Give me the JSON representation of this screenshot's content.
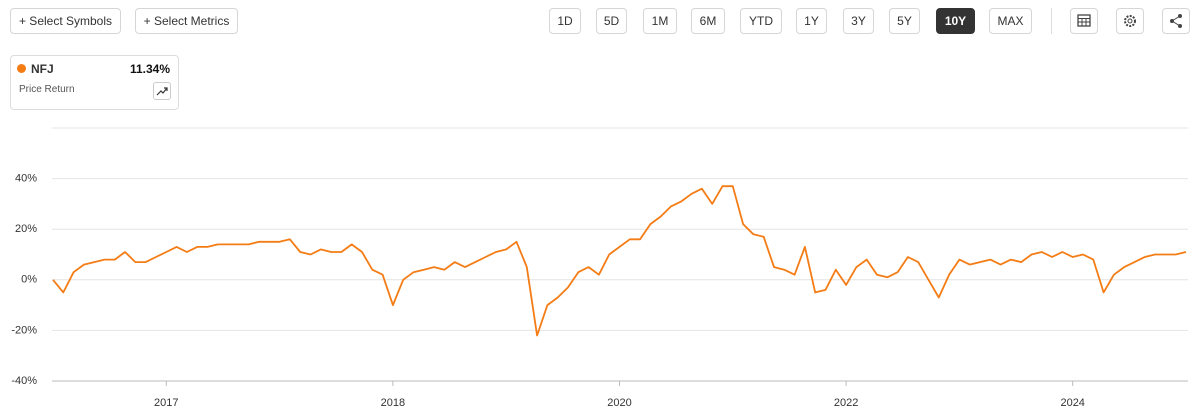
{
  "toolbar": {
    "buttons": [
      "+ Select Symbols",
      "+ Select Metrics"
    ],
    "ranges": [
      "1D",
      "5D",
      "1M",
      "6M",
      "YTD",
      "1Y",
      "3Y",
      "5Y",
      "10Y",
      "MAX"
    ],
    "active_range": "10Y"
  },
  "legend": {
    "value": "11.34%",
    "metric": "Price Return"
  },
  "chart_data": {
    "type": "line",
    "categories": [
      null,
      null,
      null,
      null,
      null,
      null,
      null,
      null,
      null,
      null,
      null,
      "2017",
      null,
      null,
      null,
      null,
      null,
      null,
      null,
      null,
      null,
      null,
      null,
      null,
      null,
      null,
      null,
      null,
      null,
      null,
      null,
      null,
      null,
      "2018",
      null,
      null,
      null,
      null,
      null,
      null,
      null,
      null,
      null,
      null,
      null,
      null,
      null,
      null,
      null,
      null,
      null,
      null,
      null,
      null,
      null,
      "2020",
      null,
      null,
      null,
      null,
      null,
      null,
      null,
      null,
      null,
      null,
      null,
      null,
      null,
      null,
      null,
      null,
      null,
      null,
      null,
      null,
      null,
      "2022",
      null,
      null,
      null,
      null,
      null,
      null,
      null,
      null,
      null,
      null,
      null,
      null,
      null,
      null,
      null,
      null,
      null,
      null,
      null,
      null,
      null,
      "2024",
      null,
      null,
      null,
      null,
      null,
      null,
      null,
      null,
      null,
      null,
      null
    ],
    "series": [
      {
        "name": "NFJ",
        "color": "#f47c15",
        "values": [
          0,
          -5,
          3,
          6,
          7,
          8,
          8,
          11,
          7,
          7,
          9,
          11,
          13,
          11,
          13,
          13,
          14,
          14,
          14,
          14,
          15,
          15,
          15,
          16,
          11,
          10,
          12,
          11,
          11,
          14,
          11,
          4,
          2,
          -10,
          0,
          3,
          4,
          5,
          4,
          7,
          5,
          7,
          9,
          11,
          12,
          15,
          5,
          -22,
          -10,
          -7,
          -3,
          3,
          5,
          2,
          10,
          13,
          16,
          16,
          22,
          25,
          29,
          31,
          34,
          36,
          30,
          37,
          37,
          22,
          18,
          17,
          5,
          4,
          2,
          13,
          -5,
          -4,
          4,
          -2,
          5,
          8,
          2,
          1,
          3,
          9,
          7,
          0,
          -7,
          2,
          8,
          6,
          7,
          8,
          6,
          8,
          7,
          10,
          11,
          9,
          11,
          9,
          10,
          8,
          -5,
          2,
          5,
          7,
          9,
          10,
          10,
          10,
          11
        ]
      }
    ],
    "ylim": [
      -40,
      60
    ],
    "yticks": [
      {
        "value": -40,
        "label": "-40%"
      },
      {
        "value": -20,
        "label": "-20%"
      },
      {
        "value": 0,
        "label": "0%"
      },
      {
        "value": 20,
        "label": "20%"
      },
      {
        "value": 40,
        "label": "40%"
      }
    ],
    "grid": true
  }
}
